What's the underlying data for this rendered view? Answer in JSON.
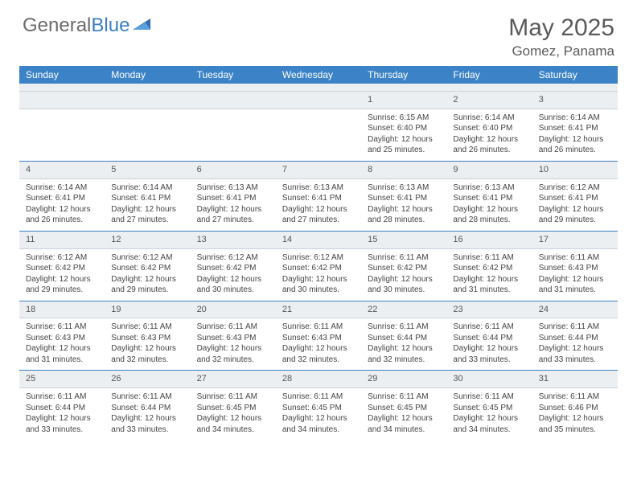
{
  "logo": {
    "part1": "General",
    "part2": "Blue"
  },
  "title": "May 2025",
  "location": "Gomez, Panama",
  "weekdays": [
    "Sunday",
    "Monday",
    "Tuesday",
    "Wednesday",
    "Thursday",
    "Friday",
    "Saturday"
  ],
  "colors": {
    "header_bg": "#3b82c7",
    "header_text": "#ffffff",
    "daynum_bg": "#eceff1",
    "border_top": "#3b7fc4",
    "border_bottom": "#c9d2da",
    "text": "#444444",
    "title_text": "#5a5a5a",
    "logo_gray": "#6b6b6b",
    "logo_blue": "#3b7fc4"
  },
  "first_weekday_index": 4,
  "days": [
    {
      "n": 1,
      "sunrise": "6:15 AM",
      "sunset": "6:40 PM",
      "daylight": "12 hours and 25 minutes."
    },
    {
      "n": 2,
      "sunrise": "6:14 AM",
      "sunset": "6:40 PM",
      "daylight": "12 hours and 26 minutes."
    },
    {
      "n": 3,
      "sunrise": "6:14 AM",
      "sunset": "6:41 PM",
      "daylight": "12 hours and 26 minutes."
    },
    {
      "n": 4,
      "sunrise": "6:14 AM",
      "sunset": "6:41 PM",
      "daylight": "12 hours and 26 minutes."
    },
    {
      "n": 5,
      "sunrise": "6:14 AM",
      "sunset": "6:41 PM",
      "daylight": "12 hours and 27 minutes."
    },
    {
      "n": 6,
      "sunrise": "6:13 AM",
      "sunset": "6:41 PM",
      "daylight": "12 hours and 27 minutes."
    },
    {
      "n": 7,
      "sunrise": "6:13 AM",
      "sunset": "6:41 PM",
      "daylight": "12 hours and 27 minutes."
    },
    {
      "n": 8,
      "sunrise": "6:13 AM",
      "sunset": "6:41 PM",
      "daylight": "12 hours and 28 minutes."
    },
    {
      "n": 9,
      "sunrise": "6:13 AM",
      "sunset": "6:41 PM",
      "daylight": "12 hours and 28 minutes."
    },
    {
      "n": 10,
      "sunrise": "6:12 AM",
      "sunset": "6:41 PM",
      "daylight": "12 hours and 29 minutes."
    },
    {
      "n": 11,
      "sunrise": "6:12 AM",
      "sunset": "6:42 PM",
      "daylight": "12 hours and 29 minutes."
    },
    {
      "n": 12,
      "sunrise": "6:12 AM",
      "sunset": "6:42 PM",
      "daylight": "12 hours and 29 minutes."
    },
    {
      "n": 13,
      "sunrise": "6:12 AM",
      "sunset": "6:42 PM",
      "daylight": "12 hours and 30 minutes."
    },
    {
      "n": 14,
      "sunrise": "6:12 AM",
      "sunset": "6:42 PM",
      "daylight": "12 hours and 30 minutes."
    },
    {
      "n": 15,
      "sunrise": "6:11 AM",
      "sunset": "6:42 PM",
      "daylight": "12 hours and 30 minutes."
    },
    {
      "n": 16,
      "sunrise": "6:11 AM",
      "sunset": "6:42 PM",
      "daylight": "12 hours and 31 minutes."
    },
    {
      "n": 17,
      "sunrise": "6:11 AM",
      "sunset": "6:43 PM",
      "daylight": "12 hours and 31 minutes."
    },
    {
      "n": 18,
      "sunrise": "6:11 AM",
      "sunset": "6:43 PM",
      "daylight": "12 hours and 31 minutes."
    },
    {
      "n": 19,
      "sunrise": "6:11 AM",
      "sunset": "6:43 PM",
      "daylight": "12 hours and 32 minutes."
    },
    {
      "n": 20,
      "sunrise": "6:11 AM",
      "sunset": "6:43 PM",
      "daylight": "12 hours and 32 minutes."
    },
    {
      "n": 21,
      "sunrise": "6:11 AM",
      "sunset": "6:43 PM",
      "daylight": "12 hours and 32 minutes."
    },
    {
      "n": 22,
      "sunrise": "6:11 AM",
      "sunset": "6:44 PM",
      "daylight": "12 hours and 32 minutes."
    },
    {
      "n": 23,
      "sunrise": "6:11 AM",
      "sunset": "6:44 PM",
      "daylight": "12 hours and 33 minutes."
    },
    {
      "n": 24,
      "sunrise": "6:11 AM",
      "sunset": "6:44 PM",
      "daylight": "12 hours and 33 minutes."
    },
    {
      "n": 25,
      "sunrise": "6:11 AM",
      "sunset": "6:44 PM",
      "daylight": "12 hours and 33 minutes."
    },
    {
      "n": 26,
      "sunrise": "6:11 AM",
      "sunset": "6:44 PM",
      "daylight": "12 hours and 33 minutes."
    },
    {
      "n": 27,
      "sunrise": "6:11 AM",
      "sunset": "6:45 PM",
      "daylight": "12 hours and 34 minutes."
    },
    {
      "n": 28,
      "sunrise": "6:11 AM",
      "sunset": "6:45 PM",
      "daylight": "12 hours and 34 minutes."
    },
    {
      "n": 29,
      "sunrise": "6:11 AM",
      "sunset": "6:45 PM",
      "daylight": "12 hours and 34 minutes."
    },
    {
      "n": 30,
      "sunrise": "6:11 AM",
      "sunset": "6:45 PM",
      "daylight": "12 hours and 34 minutes."
    },
    {
      "n": 31,
      "sunrise": "6:11 AM",
      "sunset": "6:46 PM",
      "daylight": "12 hours and 35 minutes."
    }
  ],
  "labels": {
    "sunrise": "Sunrise:",
    "sunset": "Sunset:",
    "daylight": "Daylight:"
  }
}
